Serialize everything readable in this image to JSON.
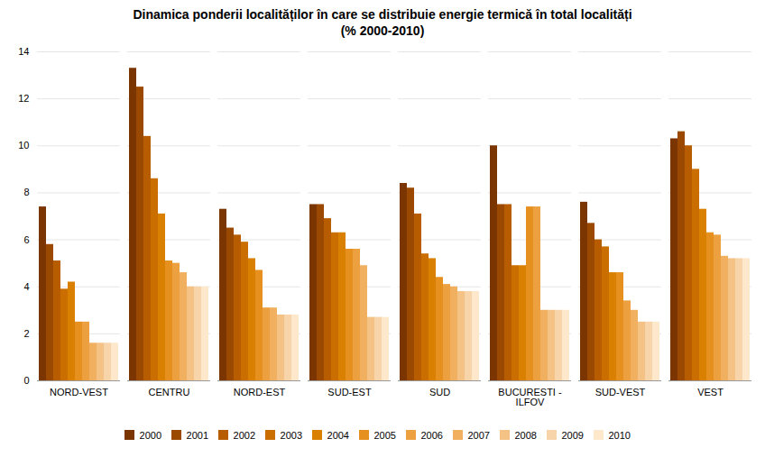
{
  "chart_data": {
    "type": "bar",
    "title": "Dinamica ponderii localităților în care se distribuie energie termică în total localități\n(% 2000-2010)",
    "categories": [
      "NORD-VEST",
      "CENTRU",
      "NORD-EST",
      "SUD-EST",
      "SUD",
      "BUCURESTI -\nILFOV",
      "SUD-VEST",
      "VEST"
    ],
    "series": [
      {
        "name": "2000",
        "color": "#7B3500",
        "values": [
          7.4,
          13.3,
          7.3,
          7.5,
          8.4,
          10.0,
          7.6,
          10.3
        ]
      },
      {
        "name": "2001",
        "color": "#9B4800",
        "values": [
          5.8,
          12.5,
          6.5,
          7.5,
          8.2,
          7.5,
          6.7,
          10.6
        ]
      },
      {
        "name": "2002",
        "color": "#B85C00",
        "values": [
          5.1,
          10.4,
          6.2,
          6.9,
          7.1,
          7.5,
          6.0,
          10.0
        ]
      },
      {
        "name": "2003",
        "color": "#CA6E00",
        "values": [
          3.9,
          8.6,
          5.9,
          6.3,
          5.4,
          4.9,
          5.7,
          9.0
        ]
      },
      {
        "name": "2004",
        "color": "#D98000",
        "values": [
          4.2,
          7.1,
          5.2,
          6.3,
          5.2,
          4.9,
          4.6,
          7.3
        ]
      },
      {
        "name": "2005",
        "color": "#E69020",
        "values": [
          2.5,
          5.1,
          4.7,
          5.6,
          4.4,
          7.4,
          4.6,
          6.3
        ]
      },
      {
        "name": "2006",
        "color": "#EDA040",
        "values": [
          2.5,
          5.0,
          3.1,
          5.6,
          4.1,
          7.4,
          3.4,
          6.2
        ]
      },
      {
        "name": "2007",
        "color": "#F0B060",
        "values": [
          1.6,
          4.6,
          3.1,
          4.9,
          4.0,
          3.0,
          3.0,
          5.3
        ]
      },
      {
        "name": "2008",
        "color": "#F4C285",
        "values": [
          1.6,
          4.0,
          2.8,
          2.7,
          3.8,
          3.0,
          2.5,
          5.2
        ]
      },
      {
        "name": "2009",
        "color": "#F8D4AA",
        "values": [
          1.6,
          4.0,
          2.8,
          2.7,
          3.8,
          3.0,
          2.5,
          5.2
        ]
      },
      {
        "name": "2010",
        "color": "#FDE8CC",
        "values": [
          1.6,
          4.0,
          2.8,
          2.7,
          3.8,
          3.0,
          2.5,
          5.2
        ]
      }
    ],
    "ylim": [
      0,
      14
    ],
    "yticks": [
      0,
      2,
      4,
      6,
      8,
      10,
      12,
      14
    ],
    "grid": true,
    "legend": "bottom"
  }
}
